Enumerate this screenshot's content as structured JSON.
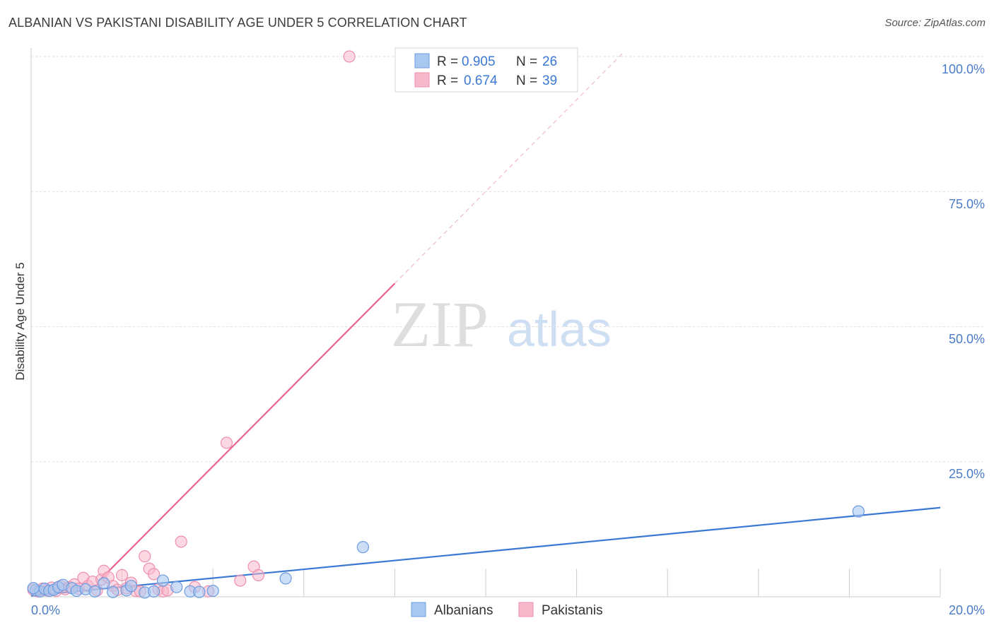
{
  "title": "ALBANIAN VS PAKISTANI DISABILITY AGE UNDER 5 CORRELATION CHART",
  "source": "Source: ZipAtlas.com",
  "watermark": {
    "zip": "ZIP",
    "atlas": "atlas"
  },
  "colors": {
    "albanian_fill": "#a9c8f0",
    "albanian_stroke": "#6b9be0",
    "albanian_line": "#3a78d4",
    "pakistani_fill": "#f7b8cb",
    "pakistani_stroke": "#ee8fae",
    "pakistani_line": "#e8648e",
    "grid": "#dddddd",
    "axis_text": "#4a7cc8"
  },
  "legend": {
    "albanian": {
      "r_label": "R =",
      "r_value": "0.905",
      "n_label": "N =",
      "n_value": "26"
    },
    "pakistani": {
      "r_label": "R =",
      "r_value": "0.674",
      "n_label": "N =",
      "n_value": "39"
    }
  },
  "chart_data": {
    "type": "scatter",
    "title": "ALBANIAN VS PAKISTANI DISABILITY AGE UNDER 5 CORRELATION CHART",
    "xlabel": "",
    "ylabel": "Disability Age Under 5",
    "xlim": [
      0,
      20
    ],
    "ylim": [
      0,
      100
    ],
    "x_tick_labels": [
      "0.0%",
      "20.0%"
    ],
    "y_ticks": [
      25,
      50,
      75,
      100
    ],
    "y_tick_labels": [
      "25.0%",
      "50.0%",
      "75.0%",
      "100.0%"
    ],
    "legend_position": "top-center",
    "series": [
      {
        "name": "Albanians",
        "points": [
          [
            0.1,
            1.2
          ],
          [
            0.2,
            1.0
          ],
          [
            0.3,
            1.5
          ],
          [
            0.4,
            1.1
          ],
          [
            0.5,
            1.3
          ],
          [
            0.6,
            1.8
          ],
          [
            0.7,
            2.2
          ],
          [
            0.9,
            1.6
          ],
          [
            1.0,
            1.1
          ],
          [
            1.2,
            1.4
          ],
          [
            1.4,
            1.0
          ],
          [
            1.6,
            2.5
          ],
          [
            1.8,
            0.9
          ],
          [
            2.1,
            1.2
          ],
          [
            2.2,
            2.0
          ],
          [
            2.5,
            0.8
          ],
          [
            2.7,
            1.0
          ],
          [
            2.9,
            3.0
          ],
          [
            3.2,
            1.8
          ],
          [
            3.5,
            1.0
          ],
          [
            3.7,
            0.9
          ],
          [
            4.0,
            1.1
          ],
          [
            5.6,
            3.4
          ],
          [
            7.3,
            9.2
          ],
          [
            18.2,
            15.8
          ],
          [
            0.05,
            1.6
          ]
        ],
        "trend": {
          "x": [
            0,
            20
          ],
          "y": [
            0.2,
            16.5
          ]
        }
      },
      {
        "name": "Pakistanis",
        "points": [
          [
            0.05,
            1.3
          ],
          [
            0.15,
            1.0
          ],
          [
            0.25,
            1.5
          ],
          [
            0.35,
            1.2
          ],
          [
            0.45,
            1.7
          ],
          [
            0.55,
            1.1
          ],
          [
            0.65,
            2.0
          ],
          [
            0.75,
            1.4
          ],
          [
            0.85,
            1.8
          ],
          [
            0.95,
            2.3
          ],
          [
            1.05,
            1.5
          ],
          [
            1.15,
            3.5
          ],
          [
            1.25,
            2.0
          ],
          [
            1.35,
            2.8
          ],
          [
            1.45,
            1.2
          ],
          [
            1.55,
            3.2
          ],
          [
            1.6,
            4.8
          ],
          [
            1.7,
            3.6
          ],
          [
            1.8,
            2.0
          ],
          [
            1.9,
            1.3
          ],
          [
            2.0,
            4.0
          ],
          [
            2.1,
            1.6
          ],
          [
            2.2,
            2.6
          ],
          [
            2.3,
            1.1
          ],
          [
            2.4,
            1.0
          ],
          [
            2.5,
            7.5
          ],
          [
            2.6,
            5.2
          ],
          [
            2.7,
            4.2
          ],
          [
            2.8,
            1.4
          ],
          [
            2.9,
            1.0
          ],
          [
            3.0,
            1.2
          ],
          [
            3.3,
            10.2
          ],
          [
            3.6,
            1.8
          ],
          [
            3.9,
            1.0
          ],
          [
            4.3,
            28.5
          ],
          [
            4.6,
            3.0
          ],
          [
            4.9,
            5.6
          ],
          [
            5.0,
            4.0
          ],
          [
            7.0,
            100.0
          ]
        ],
        "trend": {
          "x": [
            1.5,
            8.0
          ],
          "y": [
            3.0,
            58.0
          ]
        },
        "trend_dashed": {
          "x": [
            8.0,
            13.0
          ],
          "y": [
            58.0,
            100.5
          ]
        }
      }
    ]
  },
  "bottom_legend": [
    {
      "label": "Albanians"
    },
    {
      "label": "Pakistanis"
    }
  ]
}
